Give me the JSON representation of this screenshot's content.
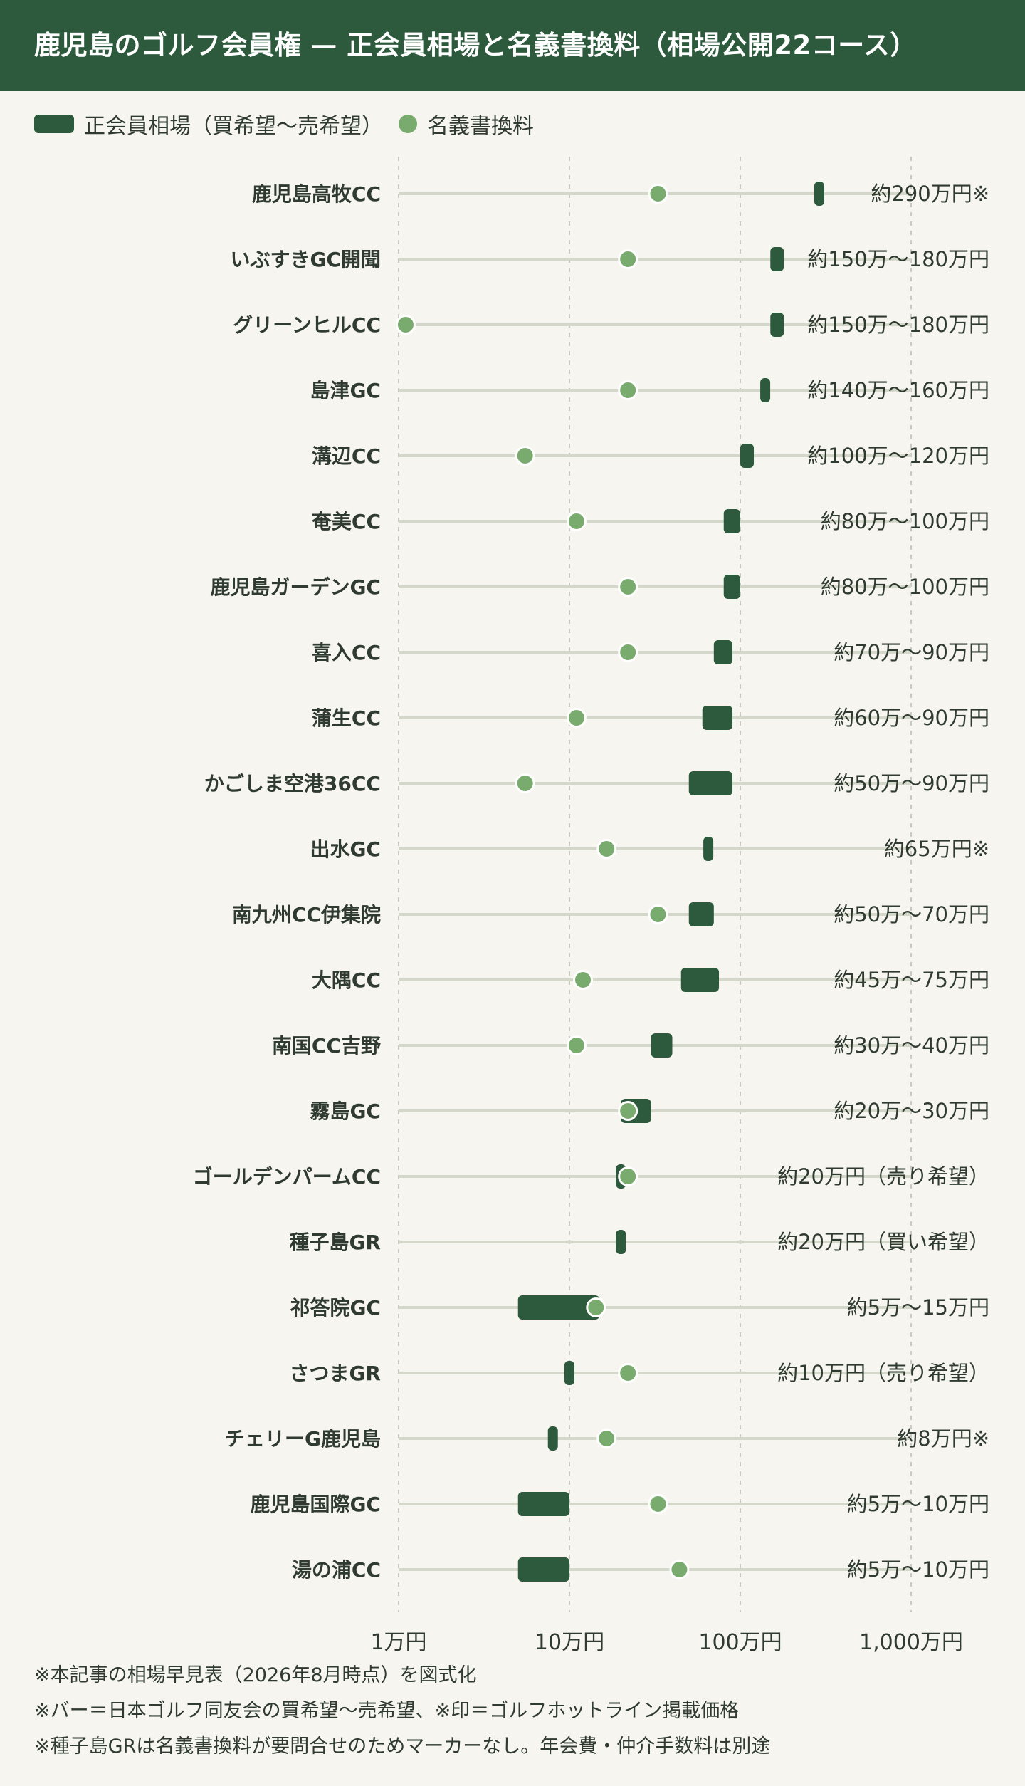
{
  "header": {
    "title": "鹿児島のゴルフ会員権 — 正会員相場と名義書換料（相場公開22コース）"
  },
  "legend": {
    "bar_label": "正会員相場（買希望〜売希望）",
    "dot_label": "名義書換料"
  },
  "colors": {
    "header_bg": "#2d5a3d",
    "bar": "#2d5a3d",
    "dot": "#7aab6e",
    "track": "#d4d8cb",
    "grid": "#c9cbbf",
    "text": "#2f3a30",
    "background": "#f6f5ef"
  },
  "chart_data": {
    "type": "range-bar-dot",
    "x_scale": "log",
    "x_unit": "万円",
    "xlim": [
      1,
      1000
    ],
    "x_ticks": [
      {
        "value": 1,
        "label": "1万円"
      },
      {
        "value": 10,
        "label": "10万円"
      },
      {
        "value": 100,
        "label": "100万円"
      },
      {
        "value": 1000,
        "label": "1,000万円"
      }
    ],
    "grid": true,
    "series": [
      {
        "name": "正会員相場（買希望〜売希望）",
        "kind": "range"
      },
      {
        "name": "名義書換料",
        "kind": "point"
      }
    ],
    "rows": [
      {
        "course": "鹿児島高牧CC",
        "low": 290,
        "high": 290,
        "fee": 33,
        "label": "約290万円※"
      },
      {
        "course": "いぶすきGC開聞",
        "low": 150,
        "high": 180,
        "fee": 22,
        "label": "約150万〜180万円"
      },
      {
        "course": "グリーンヒルCC",
        "low": 150,
        "high": 180,
        "fee": 1.1,
        "label": "約150万〜180万円"
      },
      {
        "course": "島津GC",
        "low": 140,
        "high": 160,
        "fee": 22,
        "label": "約140万〜160万円"
      },
      {
        "course": "溝辺CC",
        "low": 100,
        "high": 120,
        "fee": 5.5,
        "label": "約100万〜120万円"
      },
      {
        "course": "奄美CC",
        "low": 80,
        "high": 100,
        "fee": 11,
        "label": "約80万〜100万円"
      },
      {
        "course": "鹿児島ガーデンGC",
        "low": 80,
        "high": 100,
        "fee": 22,
        "label": "約80万〜100万円"
      },
      {
        "course": "喜入CC",
        "low": 70,
        "high": 90,
        "fee": 22,
        "label": "約70万〜90万円"
      },
      {
        "course": "蒲生CC",
        "low": 60,
        "high": 90,
        "fee": 11,
        "label": "約60万〜90万円"
      },
      {
        "course": "かごしま空港36CC",
        "low": 50,
        "high": 90,
        "fee": 5.5,
        "label": "約50万〜90万円"
      },
      {
        "course": "出水GC",
        "low": 65,
        "high": 65,
        "fee": 16.5,
        "label": "約65万円※"
      },
      {
        "course": "南九州CC伊集院",
        "low": 50,
        "high": 70,
        "fee": 33,
        "label": "約50万〜70万円"
      },
      {
        "course": "大隅CC",
        "low": 45,
        "high": 75,
        "fee": 12,
        "label": "約45万〜75万円"
      },
      {
        "course": "南国CC吉野",
        "low": 30,
        "high": 40,
        "fee": 11,
        "label": "約30万〜40万円"
      },
      {
        "course": "霧島GC",
        "low": 20,
        "high": 30,
        "fee": 22,
        "label": "約20万〜30万円"
      },
      {
        "course": "ゴールデンパームCC",
        "low": 20,
        "high": 20,
        "fee": 22,
        "label": "約20万円（売り希望）"
      },
      {
        "course": "種子島GR",
        "low": 20,
        "high": 20,
        "fee": null,
        "label": "約20万円（買い希望）"
      },
      {
        "course": "祁答院GC",
        "low": 5,
        "high": 15,
        "fee": 14.3,
        "label": "約5万〜15万円"
      },
      {
        "course": "さつまGR",
        "low": 10,
        "high": 10,
        "fee": 22,
        "label": "約10万円（売り希望）"
      },
      {
        "course": "チェリーG鹿児島",
        "low": 8,
        "high": 8,
        "fee": 16.5,
        "label": "約8万円※"
      },
      {
        "course": "鹿児島国際GC",
        "low": 5,
        "high": 10,
        "fee": 33,
        "label": "約5万〜10万円"
      },
      {
        "course": "湯の浦CC",
        "low": 5,
        "high": 10,
        "fee": 44,
        "label": "約5万〜10万円"
      }
    ]
  },
  "footnotes": [
    "※本記事の相場早見表（2026年8月時点）を図式化",
    "※バー＝日本ゴルフ同友会の買希望〜売希望、※印＝ゴルフホットライン掲載価格",
    "※種子島GRは名義書換料が要問合せのためマーカーなし。年会費・仲介手数料は別途"
  ]
}
